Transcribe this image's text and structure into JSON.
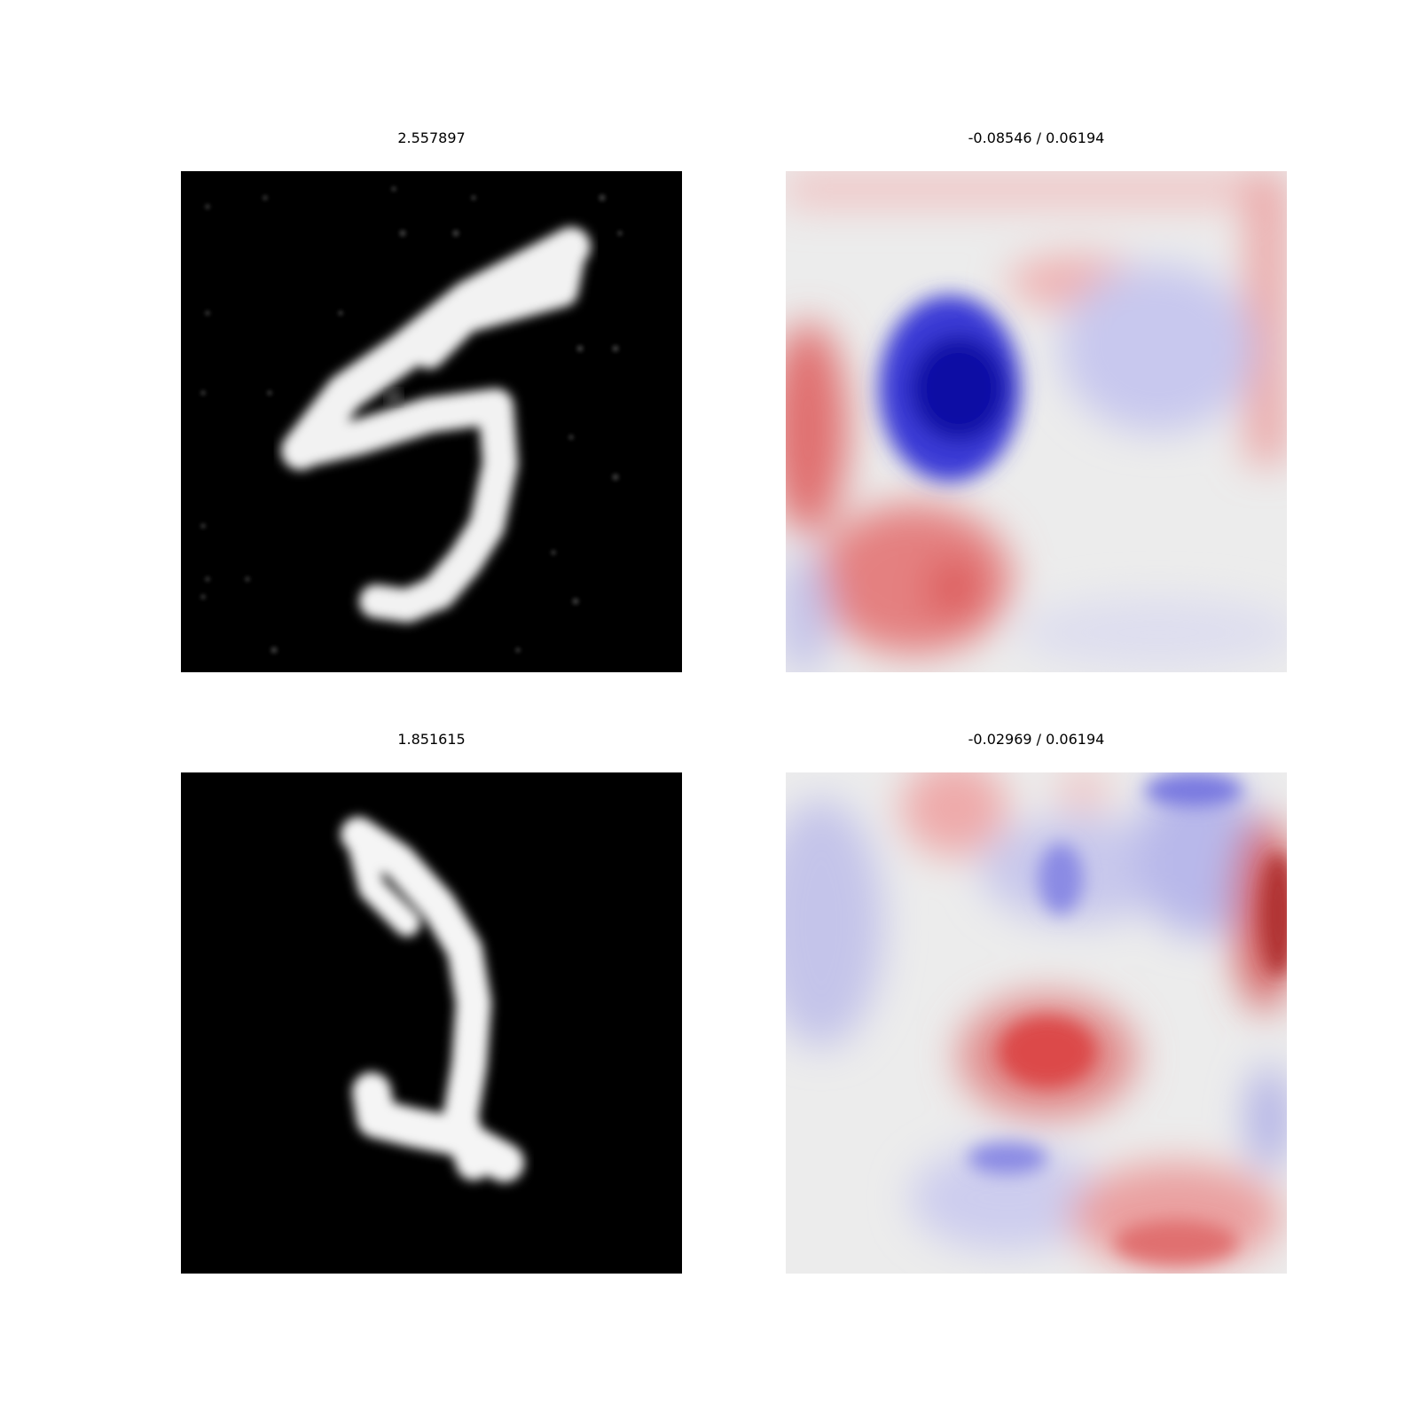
{
  "figure": {
    "panels": [
      {
        "title": "2.557897",
        "kind": "grayscale-digit",
        "digit_glyph": "5",
        "colormap": "gray"
      },
      {
        "title": "-0.08546 / 0.06194",
        "kind": "saliency-heatmap",
        "colormap": "diverging red-white-blue"
      },
      {
        "title": "1.851615",
        "kind": "grayscale-digit",
        "digit_glyph": "1",
        "colormap": "gray"
      },
      {
        "title": "-0.02969 / 0.06194",
        "kind": "saliency-heatmap",
        "colormap": "diverging red-white-blue"
      }
    ],
    "colors": {
      "positive": "#d62728",
      "negative": "#1f1fb4",
      "neutral": "#ececec",
      "digit": "#ffffff",
      "background": "#000000"
    }
  }
}
